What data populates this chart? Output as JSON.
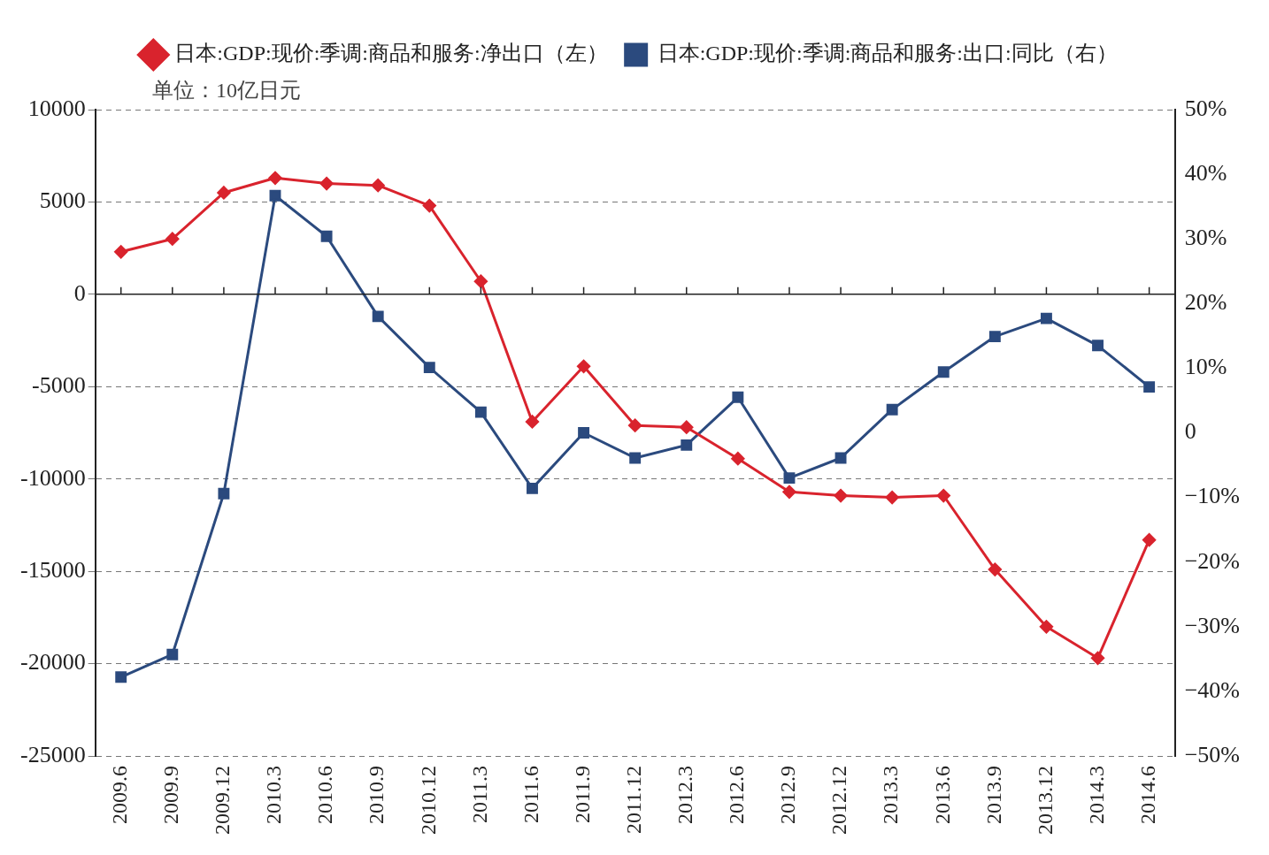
{
  "chart_data": {
    "type": "line",
    "ylabel": "单位：10亿日元",
    "categories": [
      "2009.6",
      "2009.9",
      "2009.12",
      "2010.3",
      "2010.6",
      "2010.9",
      "2010.12",
      "2011.3",
      "2011.6",
      "2011.9",
      "2011.12",
      "2012.3",
      "2012.6",
      "2012.9",
      "2012.12",
      "2013.3",
      "2013.6",
      "2013.9",
      "2013.12",
      "2014.3",
      "2014.6"
    ],
    "series": [
      {
        "name": "日本:GDP:现价:季调:商品和服务:净出口（左）",
        "color": "#d9232d",
        "marker": "diamond",
        "values": [
          2300,
          3000,
          5500,
          6300,
          6000,
          5900,
          4800,
          700,
          -6900,
          -3900,
          -7100,
          -7200,
          -8900,
          -10700,
          -10900,
          -11000,
          -10900,
          -14900,
          -18000,
          -19700,
          -13300
        ]
      },
      {
        "name": "日本:GDP:现价:季调:商品和服务:出口:同比（右）",
        "color": "#2b4a7e",
        "marker": "square",
        "axis": "y2",
        "values": [
          -37.8,
          -34.3,
          -9.4,
          36.7,
          30.4,
          18.0,
          10.1,
          3.2,
          -8.6,
          0,
          -3.9,
          -1.9,
          5.5,
          -7.0,
          -3.9,
          3.6,
          9.4,
          14.9,
          17.7,
          13.5,
          7.1
        ]
      }
    ],
    "ylim": [
      -25000,
      10000
    ],
    "yticks": [
      -25000,
      -20000,
      -15000,
      -10000,
      -5000,
      0,
      5000,
      10000
    ],
    "y2lim": [
      -50,
      50
    ],
    "y2ticks": [
      {
        "value": -50,
        "label": "−50%"
      },
      {
        "value": -40,
        "label": "−40%"
      },
      {
        "value": -30,
        "label": "−30%"
      },
      {
        "value": -20,
        "label": "−20%"
      },
      {
        "value": -10,
        "label": "−10%"
      },
      {
        "value": 0,
        "label": "0"
      },
      {
        "value": 10,
        "label": "10%"
      },
      {
        "value": 20,
        "label": "20%"
      },
      {
        "value": 30,
        "label": "30%"
      },
      {
        "value": 40,
        "label": "40%"
      },
      {
        "value": 50,
        "label": "50%"
      }
    ],
    "grid": "y",
    "legend": "top",
    "line_style": "solid"
  }
}
